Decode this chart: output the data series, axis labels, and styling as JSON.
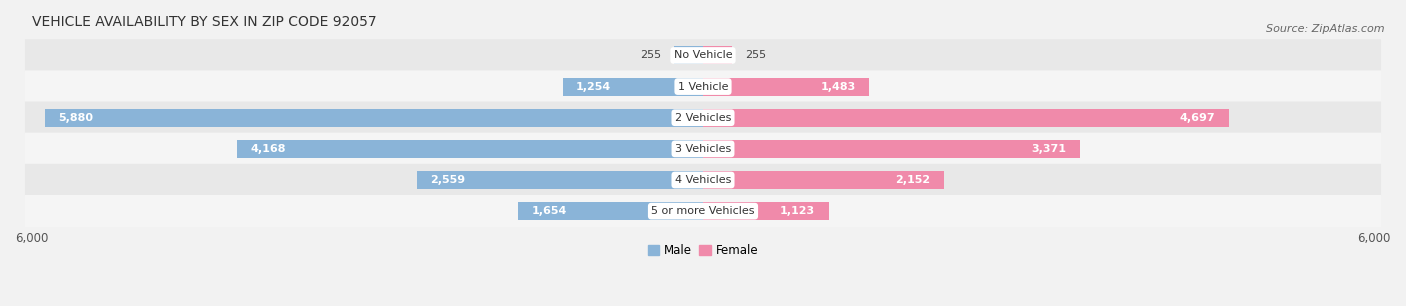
{
  "title": "VEHICLE AVAILABILITY BY SEX IN ZIP CODE 92057",
  "source": "Source: ZipAtlas.com",
  "categories": [
    "No Vehicle",
    "1 Vehicle",
    "2 Vehicles",
    "3 Vehicles",
    "4 Vehicles",
    "5 or more Vehicles"
  ],
  "male_values": [
    255,
    1254,
    5880,
    4168,
    2559,
    1654
  ],
  "female_values": [
    255,
    1483,
    4697,
    3371,
    2152,
    1123
  ],
  "male_color": "#8ab4d8",
  "female_color": "#f08aaa",
  "male_label": "Male",
  "female_label": "Female",
  "xlim": 6000,
  "bar_height": 0.58,
  "background_color": "#f2f2f2",
  "row_bg_even": "#e8e8e8",
  "row_bg_odd": "#f5f5f5",
  "title_fontsize": 10,
  "source_fontsize": 8,
  "label_fontsize": 8,
  "tick_fontsize": 8.5,
  "legend_fontsize": 8.5,
  "inside_label_threshold": 600
}
